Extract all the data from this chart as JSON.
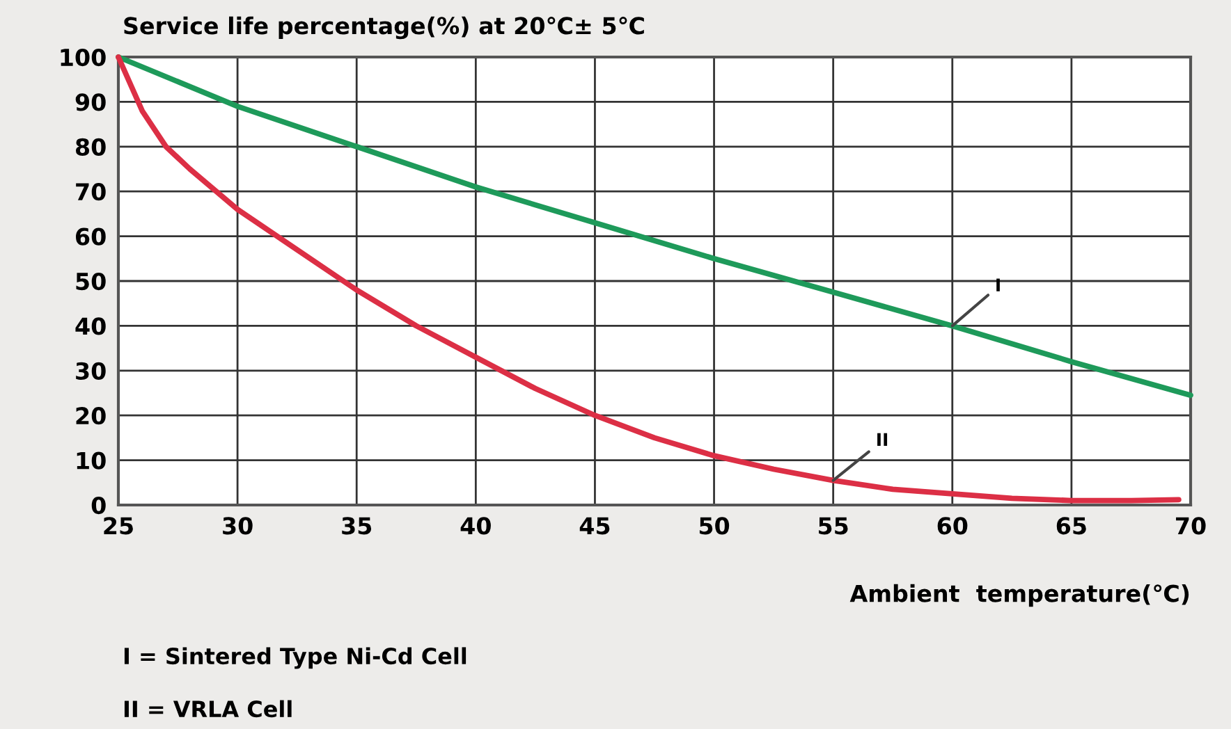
{
  "chart_data": {
    "type": "line",
    "title": "Service life percentage(%) at 20℃± 5℃",
    "xlabel": "Ambient  temperature(℃)",
    "series": [
      {
        "color": "#1e9a5a",
        "x": [
          25,
          30,
          35,
          40,
          45,
          50,
          55,
          60,
          65,
          70
        ],
        "values": [
          100,
          89,
          80,
          71,
          63,
          55,
          47.5,
          40,
          32,
          24.5
        ]
      },
      {
        "color": "#dc2f45",
        "x": [
          25,
          26,
          27,
          28,
          30,
          32.5,
          35,
          37.5,
          40,
          42.5,
          45,
          47.5,
          50,
          52.5,
          55,
          57.5,
          60,
          62.5,
          65,
          67.5,
          69.5
        ],
        "values": [
          100,
          88,
          80,
          75,
          66,
          57,
          48,
          40,
          33,
          26,
          20,
          15,
          11,
          8,
          5.5,
          3.5,
          2.5,
          1.5,
          1,
          1,
          1.2
        ]
      }
    ],
    "annotations": [
      {
        "text": "I",
        "x": 60,
        "y": 40
      },
      {
        "text": "II",
        "x": 55,
        "y": 5.5
      },
      "I = Sintered Type Ni-Cd Cell",
      "II = VRLA Cell"
    ],
    "xlim": [
      25,
      70
    ],
    "xticks": [
      25,
      30,
      35,
      40,
      45,
      50,
      55,
      60,
      65,
      70
    ],
    "ylim": [
      0,
      100
    ],
    "yticks": [
      0,
      10,
      20,
      30,
      40,
      50,
      60,
      70,
      80,
      90,
      100
    ],
    "grid": true,
    "marker": "none",
    "line_style": "solid"
  }
}
